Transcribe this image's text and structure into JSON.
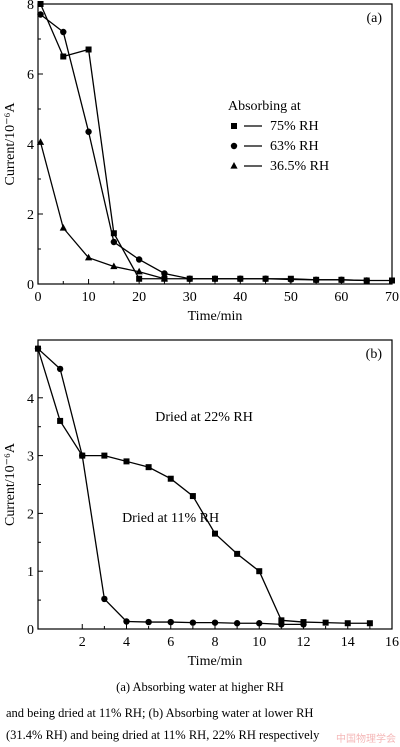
{
  "chart_data": [
    {
      "type": "line",
      "panel_label": "(a)",
      "xlabel": "Time/min",
      "ylabel": "Current/10⁻⁶A",
      "xlim": [
        0,
        70
      ],
      "ylim": [
        0,
        8
      ],
      "xticks": [
        "0",
        "10",
        "20",
        "30",
        "40",
        "50",
        "60",
        "70"
      ],
      "yticks": [
        "0",
        "2",
        "4",
        "6",
        "8"
      ],
      "xtick_values": [
        0,
        10,
        20,
        30,
        40,
        50,
        60,
        70
      ],
      "ytick_values": [
        0,
        2,
        4,
        6,
        8
      ],
      "legend_title": "Absorbing at",
      "legend_position": "center-right",
      "series": [
        {
          "name": "75% RH",
          "marker": "square",
          "x": [
            0.5,
            5,
            10,
            15,
            20,
            25,
            30,
            35,
            40,
            45,
            50,
            55,
            60,
            65,
            70
          ],
          "y": [
            8.0,
            6.5,
            6.7,
            1.45,
            0.15,
            0.15,
            0.15,
            0.15,
            0.15,
            0.15,
            0.15,
            0.12,
            0.12,
            0.1,
            0.1
          ]
        },
        {
          "name": "63% RH",
          "marker": "circle",
          "x": [
            0.5,
            5,
            10,
            15,
            20,
            25,
            30,
            35,
            40,
            45,
            50,
            55,
            60,
            65
          ],
          "y": [
            7.7,
            7.2,
            4.35,
            1.2,
            0.7,
            0.3,
            0.15,
            0.15,
            0.15,
            0.15,
            0.13,
            0.12,
            0.12,
            0.1
          ]
        },
        {
          "name": "36.5% RH",
          "marker": "triangle",
          "x": [
            0.5,
            5,
            10,
            15,
            20,
            25
          ],
          "y": [
            4.05,
            1.6,
            0.75,
            0.5,
            0.35,
            0.15
          ]
        }
      ]
    },
    {
      "type": "line",
      "panel_label": "(b)",
      "xlabel": "Time/min",
      "ylabel": "Current/10⁻⁶A",
      "xlim": [
        0,
        16
      ],
      "ylim": [
        0,
        5
      ],
      "xticks": [
        "2",
        "4",
        "6",
        "8",
        "10",
        "12",
        "14",
        "16"
      ],
      "yticks": [
        "0",
        "1",
        "2",
        "3",
        "4"
      ],
      "xtick_values": [
        2,
        4,
        6,
        8,
        10,
        12,
        14,
        16
      ],
      "ytick_values": [
        0,
        1,
        2,
        3,
        4
      ],
      "annotations": [
        {
          "text": "Dried at 22% RH",
          "x": 5.3,
          "y": 3.6
        },
        {
          "text": "Dried at 11% RH",
          "x": 3.8,
          "y": 1.85
        }
      ],
      "series": [
        {
          "label_ref": "Dried at 22% RH",
          "marker": "square",
          "x": [
            0,
            1,
            2,
            3,
            4,
            5,
            6,
            7,
            8,
            9,
            10,
            11,
            12,
            13,
            14,
            15
          ],
          "y": [
            4.85,
            3.6,
            3.0,
            3.0,
            2.9,
            2.8,
            2.6,
            2.3,
            1.65,
            1.3,
            1.0,
            0.15,
            0.12,
            0.11,
            0.1,
            0.1
          ]
        },
        {
          "label_ref": "Dried at 11% RH",
          "marker": "circle",
          "x": [
            0,
            1,
            2,
            3,
            4,
            5,
            6,
            7,
            8,
            9,
            10,
            11,
            12
          ],
          "y": [
            4.85,
            4.5,
            3.0,
            0.52,
            0.13,
            0.12,
            0.12,
            0.11,
            0.11,
            0.1,
            0.1,
            0.08,
            0.08
          ]
        }
      ]
    }
  ],
  "caption": {
    "line1": "(a) Absorbing water at higher RH",
    "line2": "and being dried at 11% RH; (b) Absorbing water at lower RH",
    "line3": "(31.4% RH) and being dried at 11% RH, 22% RH respectively"
  },
  "watermark": "中国物理学会"
}
